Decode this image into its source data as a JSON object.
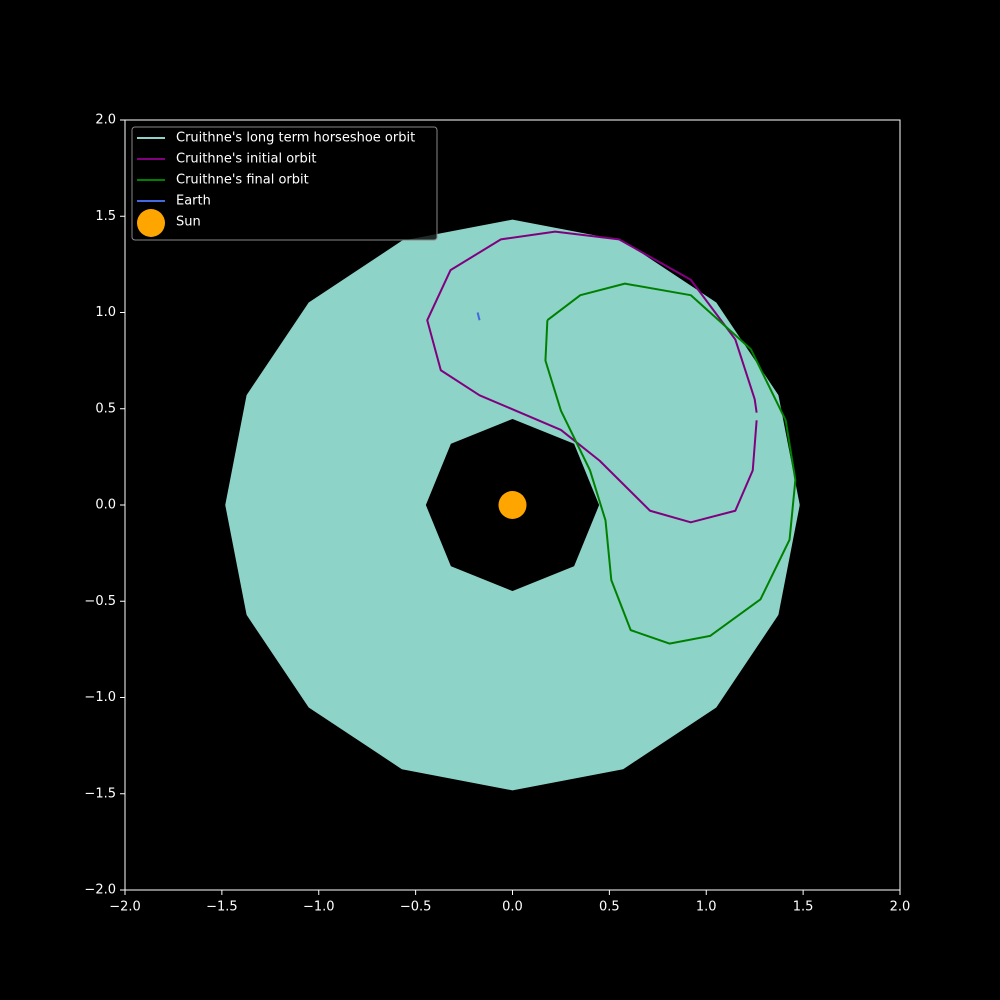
{
  "chart_data": {
    "type": "line",
    "xlim": [
      -2,
      2
    ],
    "ylim": [
      -2,
      2
    ],
    "xticks": [
      {
        "value": -2,
        "label": "−2.0"
      },
      {
        "value": -1.5,
        "label": "−1.5"
      },
      {
        "value": -1,
        "label": "−1.0"
      },
      {
        "value": -0.5,
        "label": "−0.5"
      },
      {
        "value": 0,
        "label": "0.0"
      },
      {
        "value": 0.5,
        "label": "0.5"
      },
      {
        "value": 1,
        "label": "1.0"
      },
      {
        "value": 1.5,
        "label": "1.5"
      },
      {
        "value": 2,
        "label": "2.0"
      }
    ],
    "yticks": [
      {
        "value": -2,
        "label": "−2.0"
      },
      {
        "value": -1.5,
        "label": "−1.5"
      },
      {
        "value": -1,
        "label": "−1.0"
      },
      {
        "value": -0.5,
        "label": "−0.5"
      },
      {
        "value": 0,
        "label": "0.0"
      },
      {
        "value": 0.5,
        "label": "0.5"
      },
      {
        "value": 1,
        "label": "1.0"
      },
      {
        "value": 1.5,
        "label": "1.5"
      },
      {
        "value": 2,
        "label": "2.0"
      }
    ],
    "legend": "upper left",
    "series": [
      {
        "name": "Cruithne's long term horseshoe orbit",
        "color": "#8dd3c7",
        "kind": "filled",
        "x": [
          1.48,
          1.37,
          1.05,
          0.57,
          0,
          -0.57,
          -1.05,
          -1.37,
          -1.48,
          -1.37,
          -1.05,
          -0.57,
          0,
          0.57,
          1.05,
          1.37,
          1.48,
          null,
          0.45,
          0.32,
          0,
          -0.32,
          -0.45,
          -0.32,
          0,
          0.32,
          0.45
        ],
        "y": [
          0,
          0.57,
          1.05,
          1.37,
          1.48,
          1.37,
          1.05,
          0.57,
          0,
          -0.57,
          -1.05,
          -1.37,
          -1.48,
          -1.37,
          -1.05,
          -0.57,
          0,
          null,
          0,
          0.32,
          0.45,
          0.32,
          0,
          -0.32,
          -0.45,
          -0.32,
          0
        ]
      },
      {
        "name": "Cruithne's initial orbit",
        "color": "#800080",
        "kind": "line",
        "x": [
          1.26,
          1.24,
          1.15,
          0.92,
          0.71,
          0.55,
          0.45,
          0.25,
          -0.17,
          -0.37,
          -0.44,
          -0.32,
          -0.06,
          0.22,
          0.55,
          0.92,
          1.15,
          1.25,
          1.26
        ],
        "y": [
          0.44,
          0.18,
          -0.03,
          -0.09,
          -0.03,
          0.13,
          0.23,
          0.39,
          0.57,
          0.7,
          0.96,
          1.22,
          1.38,
          1.42,
          1.38,
          1.17,
          0.86,
          0.55,
          0.48
        ]
      },
      {
        "name": "Cruithne's final orbit",
        "color": "#008000",
        "kind": "line",
        "x": [
          0.18,
          0.35,
          0.58,
          0.92,
          1.23,
          1.41,
          1.46,
          1.43,
          1.28,
          1.02,
          0.81,
          0.61,
          0.51,
          0.48,
          0.4,
          0.25,
          0.17,
          0.18
        ],
        "y": [
          0.96,
          1.09,
          1.15,
          1.09,
          0.81,
          0.44,
          0.13,
          -0.18,
          -0.49,
          -0.68,
          -0.72,
          -0.65,
          -0.39,
          -0.08,
          0.18,
          0.49,
          0.75,
          0.96
        ]
      },
      {
        "name": "Earth",
        "color": "#4169e1",
        "kind": "line",
        "x": [
          -0.18,
          -0.17
        ],
        "y": [
          1.0,
          0.96
        ]
      },
      {
        "name": "Sun",
        "color": "#ffa500",
        "kind": "scatter",
        "x": [
          0
        ],
        "y": [
          0
        ]
      }
    ]
  }
}
